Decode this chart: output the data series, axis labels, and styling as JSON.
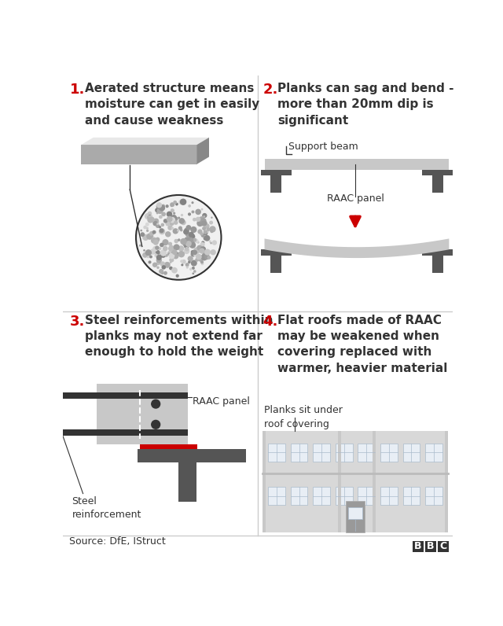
{
  "bg_color": "#ffffff",
  "divider_color": "#cccccc",
  "red_color": "#cc0000",
  "dark_gray": "#333333",
  "mid_gray": "#777777",
  "light_gray": "#bbbbbb",
  "lighter_gray": "#d4d4d4",
  "panel_gray": "#c8c8c8",
  "beam_dark": "#555555",
  "source_text": "Source: DfE, IStruct",
  "title1": "1.",
  "text1": "Aerated structure means\nmoisture can get in easily\nand cause weakness",
  "title2": "2.",
  "text2": "Planks can sag and bend -\nmore than 20mm dip is\nsignificant",
  "title3": "3.",
  "text3": "Steel reinforcements within\nplanks may not extend far\nenough to hold the weight",
  "title4": "4.",
  "text4": "Flat roofs made of RAAC\nmay be weakened when\ncovering replaced with\nwarmer, heavier material",
  "label_support": "Support beam",
  "label_raac_s2": "RAAC panel",
  "label_raac_s3": "RAAC panel",
  "label_steel": "Steel\nreinforcement",
  "label_planks": "Planks sit under\nroof covering"
}
